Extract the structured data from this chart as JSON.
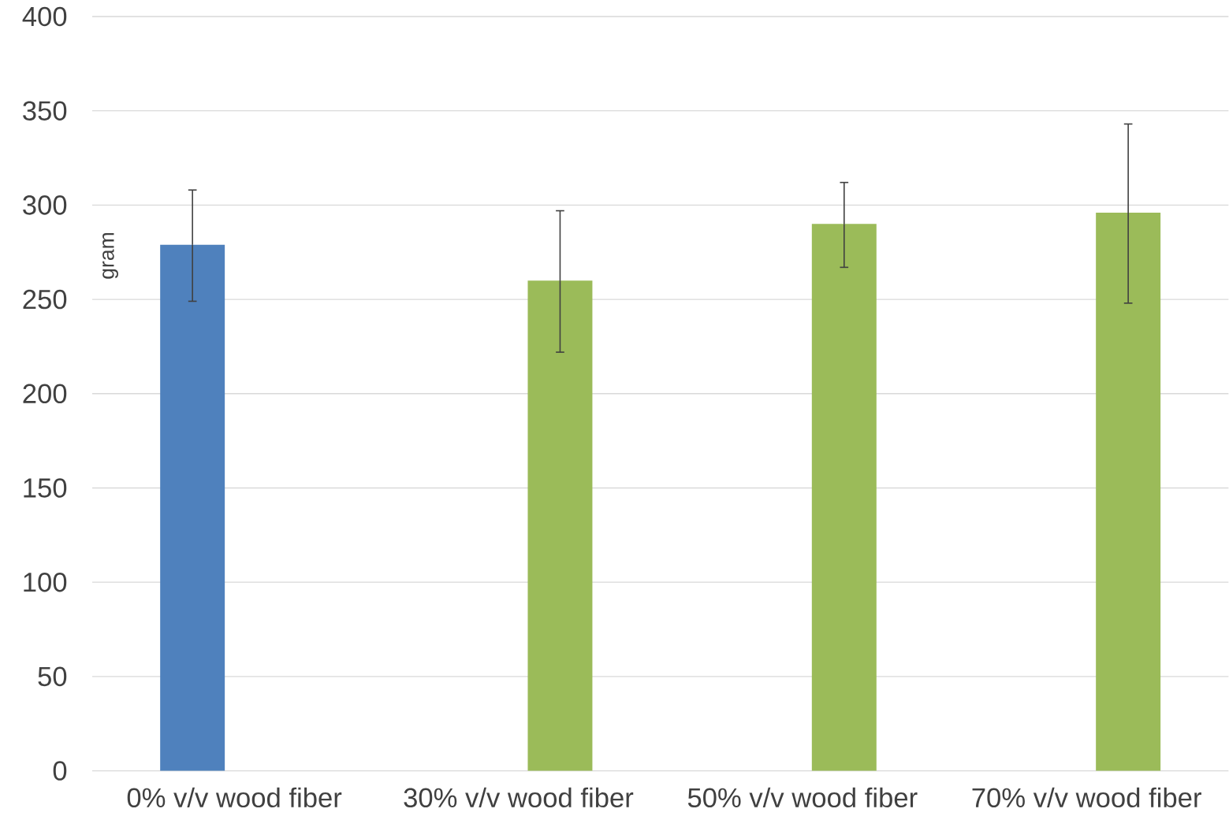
{
  "chart_data": {
    "type": "bar",
    "ylabel": "gram",
    "categories": [
      "0% v/v wood fiber",
      "30% v/v wood fiber",
      "50% v/v wood fiber",
      "70% v/v wood fiber"
    ],
    "series": [
      {
        "color": "#4f81bd",
        "values": [
          279,
          null,
          null,
          null
        ],
        "errors": [
          [
            249,
            308
          ],
          null,
          null,
          null
        ]
      },
      {
        "color": "#9bbb59",
        "values": [
          null,
          260,
          290,
          296
        ],
        "errors": [
          null,
          [
            222,
            297
          ],
          [
            267,
            312
          ],
          [
            248,
            343
          ]
        ]
      }
    ],
    "ylim": [
      0,
      400
    ],
    "yticks": [
      0,
      50,
      100,
      150,
      200,
      250,
      300,
      350,
      400
    ],
    "grid": "y"
  }
}
